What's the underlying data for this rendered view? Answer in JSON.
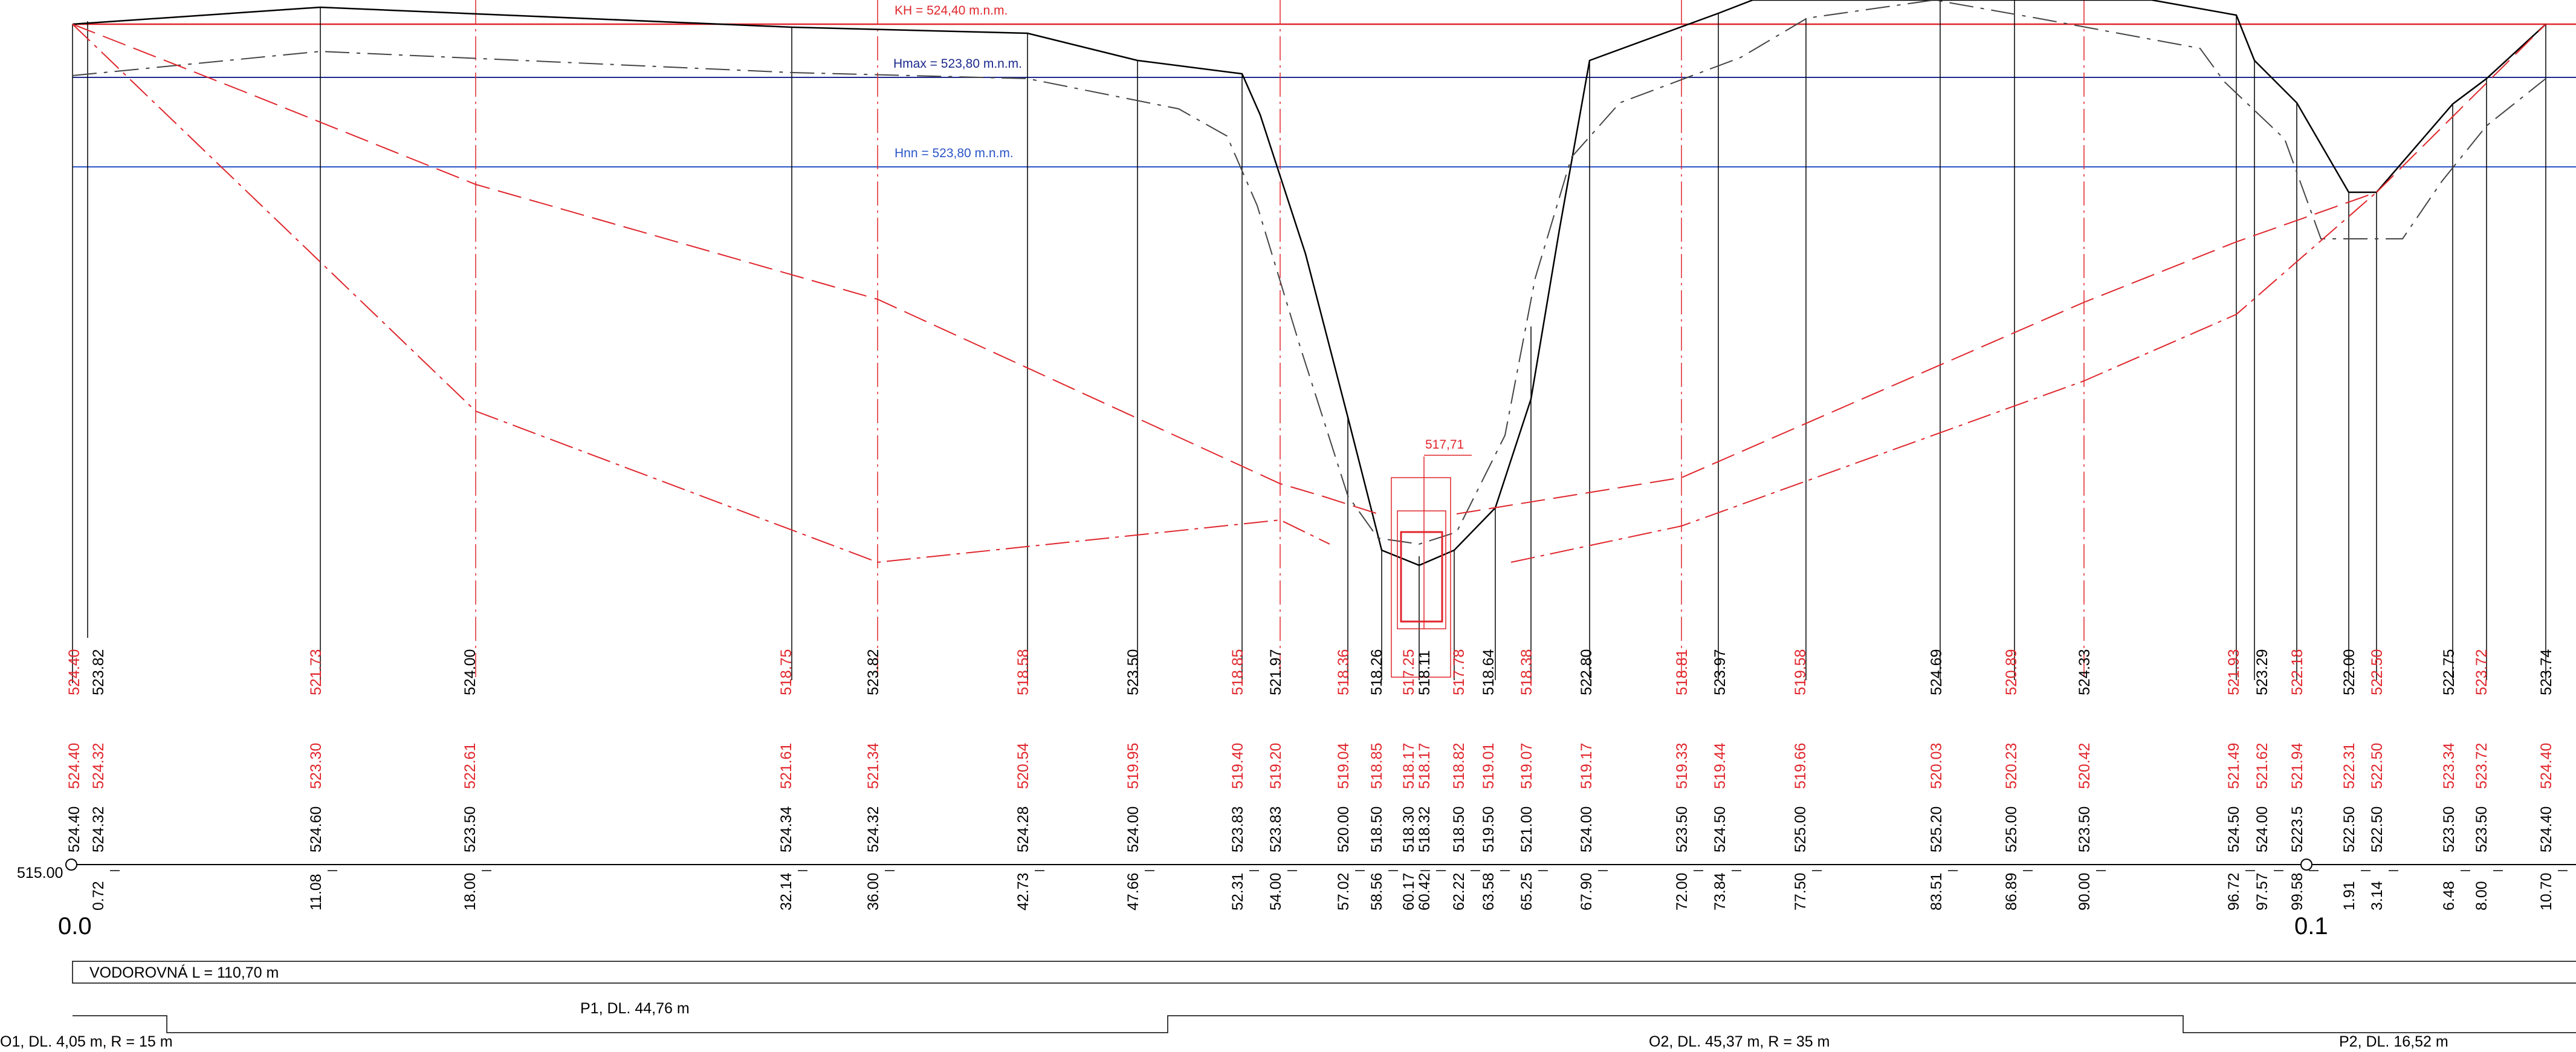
{
  "colors": {
    "terrain": "#000000",
    "terrain_dashed": "#444444",
    "design": "#e0262c",
    "kh_line": "#e0262c",
    "hmax_line": "#1c2a8c",
    "hnn_line": "#2a55c8"
  },
  "levels": {
    "kh": "KH = 524,40 m.n.m.",
    "hmax": "Hmax = 523,80 m.n.m.",
    "hnn": "Hnn = 523,80 m.n.m."
  },
  "crest_label": "517,71",
  "datum": "515.00",
  "stationing": {
    "start": "0.0",
    "mid": "0.1"
  },
  "bands": {
    "horizontal": "VODOROVNÁ L = 110,70 m",
    "p1": "P1, DL. 44,76 m",
    "o1": "O1, DL. 4,05 m, R = 15 m",
    "o2": "O2, DL. 45,37 m, R = 35 m",
    "p2": "P2, DL. 16,52 m"
  },
  "columns": [
    {
      "dist": "",
      "vals": [
        {
          "t": "524.40",
          "c": "k"
        },
        {
          "t": "524.40",
          "c": "r"
        },
        {
          "t": "524.40",
          "c": "r"
        }
      ]
    },
    {
      "dist": "0.72",
      "vals": [
        {
          "t": "524.32",
          "c": "k"
        },
        {
          "t": "524.32",
          "c": "r"
        },
        {
          "t": "523.82",
          "c": "k"
        }
      ]
    },
    {
      "dist": "11.08",
      "vals": [
        {
          "t": "524.60",
          "c": "k"
        },
        {
          "t": "523.30",
          "c": "r"
        },
        {
          "t": "521.73",
          "c": "r"
        }
      ]
    },
    {
      "dist": "18.00",
      "vals": [
        {
          "t": "523.50",
          "c": "k"
        },
        {
          "t": "522.61",
          "c": "r"
        },
        {
          "t": "524.00",
          "c": "k"
        }
      ]
    },
    {
      "dist": "32.14",
      "vals": [
        {
          "t": "524.34",
          "c": "k"
        },
        {
          "t": "521.61",
          "c": "r"
        },
        {
          "t": "518.75",
          "c": "r"
        }
      ]
    },
    {
      "dist": "36.00",
      "vals": [
        {
          "t": "524.32",
          "c": "k"
        },
        {
          "t": "521.34",
          "c": "r"
        },
        {
          "t": "523.82",
          "c": "k"
        }
      ]
    },
    {
      "dist": "42.73",
      "vals": [
        {
          "t": "524.28",
          "c": "k"
        },
        {
          "t": "520.54",
          "c": "r"
        },
        {
          "t": "518.58",
          "c": "r"
        }
      ]
    },
    {
      "dist": "47.66",
      "vals": [
        {
          "t": "524.00",
          "c": "k"
        },
        {
          "t": "519.95",
          "c": "r"
        },
        {
          "t": "523.50",
          "c": "k"
        }
      ]
    },
    {
      "dist": "52.31",
      "vals": [
        {
          "t": "523.83",
          "c": "k"
        },
        {
          "t": "519.40",
          "c": "r"
        },
        {
          "t": "518.85",
          "c": "r"
        }
      ]
    },
    {
      "dist": "54.00",
      "vals": [
        {
          "t": "523.83",
          "c": "k"
        },
        {
          "t": "519.20",
          "c": "r"
        },
        {
          "t": "521.97",
          "c": "k"
        }
      ]
    },
    {
      "dist": "57.02",
      "vals": [
        {
          "t": "520.00",
          "c": "k"
        },
        {
          "t": "519.04",
          "c": "r"
        },
        {
          "t": "518.36",
          "c": "r"
        }
      ]
    },
    {
      "dist": "58.56",
      "vals": [
        {
          "t": "518.50",
          "c": "k"
        },
        {
          "t": "518.85",
          "c": "r"
        },
        {
          "t": "518.26",
          "c": "k"
        }
      ]
    },
    {
      "dist": "60.17",
      "vals": [
        {
          "t": "518.30",
          "c": "k"
        },
        {
          "t": "518.17",
          "c": "r"
        },
        {
          "t": "517.25",
          "c": "r"
        }
      ]
    },
    {
      "dist": "60.42",
      "vals": [
        {
          "t": "518.32",
          "c": "k"
        },
        {
          "t": "518.17",
          "c": "r"
        },
        {
          "t": "518.11",
          "c": "k"
        }
      ]
    },
    {
      "dist": "62.22",
      "vals": [
        {
          "t": "518.50",
          "c": "k"
        },
        {
          "t": "518.82",
          "c": "r"
        },
        {
          "t": "517.78",
          "c": "r"
        }
      ]
    },
    {
      "dist": "63.58",
      "vals": [
        {
          "t": "519.50",
          "c": "k"
        },
        {
          "t": "519.01",
          "c": "r"
        },
        {
          "t": "518.64",
          "c": "k"
        }
      ]
    },
    {
      "dist": "65.25",
      "vals": [
        {
          "t": "521.00",
          "c": "k"
        },
        {
          "t": "519.07",
          "c": "r"
        },
        {
          "t": "518.38",
          "c": "r"
        }
      ]
    },
    {
      "dist": "67.90",
      "vals": [
        {
          "t": "524.00",
          "c": "k"
        },
        {
          "t": "519.17",
          "c": "r"
        },
        {
          "t": "522.80",
          "c": "k"
        }
      ]
    },
    {
      "dist": "72.00",
      "vals": [
        {
          "t": "523.50",
          "c": "k"
        },
        {
          "t": "519.33",
          "c": "r"
        },
        {
          "t": "518.81",
          "c": "r"
        }
      ]
    },
    {
      "dist": "73.84",
      "vals": [
        {
          "t": "524.50",
          "c": "k"
        },
        {
          "t": "519.44",
          "c": "r"
        },
        {
          "t": "523.97",
          "c": "k"
        }
      ]
    },
    {
      "dist": "77.50",
      "vals": [
        {
          "t": "525.00",
          "c": "k"
        },
        {
          "t": "519.66",
          "c": "r"
        },
        {
          "t": "519.58",
          "c": "r"
        }
      ]
    },
    {
      "dist": "83.51",
      "vals": [
        {
          "t": "525.20",
          "c": "k"
        },
        {
          "t": "520.03",
          "c": "r"
        },
        {
          "t": "524.69",
          "c": "k"
        }
      ]
    },
    {
      "dist": "86.89",
      "vals": [
        {
          "t": "525.00",
          "c": "k"
        },
        {
          "t": "520.23",
          "c": "r"
        },
        {
          "t": "520.89",
          "c": "r"
        }
      ]
    },
    {
      "dist": "90.00",
      "vals": [
        {
          "t": "523.50",
          "c": "k"
        },
        {
          "t": "520.42",
          "c": "r"
        },
        {
          "t": "524.33",
          "c": "k"
        }
      ]
    },
    {
      "dist": "96.72",
      "vals": [
        {
          "t": "524.50",
          "c": "k"
        },
        {
          "t": "521.49",
          "c": "r"
        },
        {
          "t": "521.93",
          "c": "r"
        }
      ]
    },
    {
      "dist": "97.57",
      "vals": [
        {
          "t": "524.00",
          "c": "k"
        },
        {
          "t": "521.62",
          "c": "r"
        },
        {
          "t": "523.29",
          "c": "k"
        }
      ]
    },
    {
      "dist": "99.58",
      "vals": [
        {
          "t": "5223.5",
          "c": "k"
        },
        {
          "t": "521.94",
          "c": "r"
        },
        {
          "t": "522.18",
          "c": "r"
        }
      ]
    },
    {
      "dist": "1.91",
      "vals": [
        {
          "t": "522.50",
          "c": "k"
        },
        {
          "t": "522.31",
          "c": "r"
        },
        {
          "t": "522.00",
          "c": "k"
        }
      ]
    },
    {
      "dist": "3.14",
      "vals": [
        {
          "t": "522.50",
          "c": "k"
        },
        {
          "t": "522.50",
          "c": "r"
        },
        {
          "t": "522.50",
          "c": "r"
        }
      ]
    },
    {
      "dist": "6.48",
      "vals": [
        {
          "t": "523.50",
          "c": "k"
        },
        {
          "t": "523.34",
          "c": "r"
        },
        {
          "t": "522.75",
          "c": "k"
        }
      ]
    },
    {
      "dist": "8.00",
      "vals": [
        {
          "t": "523.50",
          "c": "k"
        },
        {
          "t": "523.72",
          "c": "r"
        },
        {
          "t": "523.72",
          "c": "r"
        }
      ]
    },
    {
      "dist": "10.70",
      "vals": [
        {
          "t": "524.40",
          "c": "k"
        },
        {
          "t": "524.40",
          "c": "r"
        },
        {
          "t": "523.74",
          "c": "k"
        }
      ]
    }
  ]
}
